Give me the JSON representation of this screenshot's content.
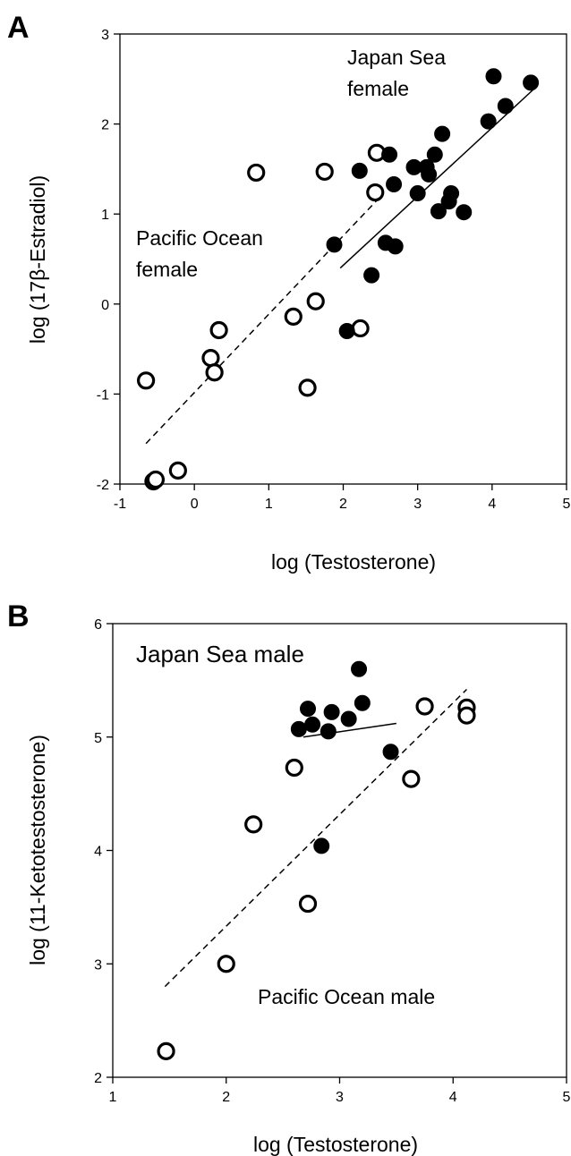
{
  "chart_data": [
    {
      "panel": "A",
      "type": "scatter",
      "xlabel": "log (Testosterone)",
      "ylabel": "log (17β-Estradiol)",
      "xlim": [
        -1,
        5
      ],
      "ylim": [
        -2,
        3
      ],
      "xticks": [
        "-1",
        "0",
        "1",
        "2",
        "3",
        "4",
        "5"
      ],
      "yticks": [
        "-2",
        "-1",
        "0",
        "1",
        "2",
        "3"
      ],
      "annotations": [
        {
          "id": "japan",
          "lines": [
            "Japan Sea",
            "female"
          ]
        },
        {
          "id": "pacific",
          "lines": [
            "Pacific Ocean",
            "female"
          ]
        }
      ],
      "series": [
        {
          "label": "Pacific Ocean female",
          "marker": "open-circle",
          "points": [
            [
              -0.65,
              -0.85
            ],
            [
              -0.55,
              -1.97
            ],
            [
              -0.52,
              -1.95
            ],
            [
              -0.22,
              -1.85
            ],
            [
              0.22,
              -0.6
            ],
            [
              0.27,
              -0.76
            ],
            [
              0.33,
              -0.29
            ],
            [
              0.83,
              1.46
            ],
            [
              1.33,
              -0.14
            ],
            [
              1.52,
              -0.93
            ],
            [
              1.63,
              0.03
            ],
            [
              1.75,
              1.47
            ],
            [
              2.23,
              -0.27
            ],
            [
              2.43,
              1.24
            ],
            [
              2.45,
              1.68
            ]
          ],
          "fit": {
            "style": "dashed",
            "x": [
              -0.65,
              2.45
            ],
            "y": [
              -1.55,
              1.15
            ]
          }
        },
        {
          "label": "Japan Sea female",
          "marker": "filled-circle",
          "points": [
            [
              1.88,
              0.66
            ],
            [
              2.05,
              -0.3
            ],
            [
              2.22,
              1.48
            ],
            [
              2.38,
              0.32
            ],
            [
              2.57,
              0.68
            ],
            [
              2.62,
              1.66
            ],
            [
              2.68,
              1.33
            ],
            [
              2.7,
              0.64
            ],
            [
              2.95,
              1.52
            ],
            [
              3.0,
              1.23
            ],
            [
              3.12,
              1.52
            ],
            [
              3.15,
              1.44
            ],
            [
              3.23,
              1.66
            ],
            [
              3.28,
              1.03
            ],
            [
              3.33,
              1.89
            ],
            [
              3.42,
              1.14
            ],
            [
              3.45,
              1.23
            ],
            [
              3.62,
              1.02
            ],
            [
              3.95,
              2.03
            ],
            [
              4.02,
              2.53
            ],
            [
              4.18,
              2.2
            ],
            [
              4.52,
              2.46
            ]
          ],
          "fit": {
            "style": "solid",
            "x": [
              1.96,
              4.55
            ],
            "y": [
              0.4,
              2.38
            ]
          }
        }
      ]
    },
    {
      "panel": "B",
      "type": "scatter",
      "xlabel": "log (Testosterone)",
      "ylabel": "log (11-Ketotestosterone)",
      "xlim": [
        1,
        5
      ],
      "ylim": [
        2,
        6
      ],
      "xticks": [
        "1",
        "2",
        "3",
        "4",
        "5"
      ],
      "yticks": [
        "2",
        "3",
        "4",
        "5",
        "6"
      ],
      "annotations": [
        {
          "id": "japan",
          "lines": [
            "Japan Sea male"
          ]
        },
        {
          "id": "pacific",
          "lines": [
            "Pacific Ocean male"
          ]
        }
      ],
      "series": [
        {
          "label": "Pacific Ocean male",
          "marker": "open-circle",
          "points": [
            [
              1.47,
              2.23
            ],
            [
              2.0,
              3.0
            ],
            [
              2.24,
              4.23
            ],
            [
              2.6,
              4.73
            ],
            [
              2.72,
              3.53
            ],
            [
              3.63,
              4.63
            ],
            [
              3.75,
              5.27
            ],
            [
              4.12,
              5.26
            ],
            [
              4.12,
              5.19
            ]
          ],
          "fit": {
            "style": "dashed",
            "x": [
              1.46,
              4.12
            ],
            "y": [
              2.8,
              5.42
            ]
          }
        },
        {
          "label": "Japan Sea male",
          "marker": "filled-circle",
          "points": [
            [
              2.64,
              5.07
            ],
            [
              2.72,
              5.25
            ],
            [
              2.76,
              5.11
            ],
            [
              2.84,
              4.04
            ],
            [
              2.9,
              5.05
            ],
            [
              2.93,
              5.22
            ],
            [
              3.08,
              5.16
            ],
            [
              3.17,
              5.6
            ],
            [
              3.2,
              5.3
            ],
            [
              3.45,
              4.87
            ]
          ],
          "fit": {
            "style": "solid",
            "x": [
              2.68,
              3.5
            ],
            "y": [
              5.0,
              5.12
            ]
          }
        }
      ]
    }
  ],
  "panels": {
    "A": {
      "letter": "A"
    },
    "B": {
      "letter": "B"
    }
  }
}
